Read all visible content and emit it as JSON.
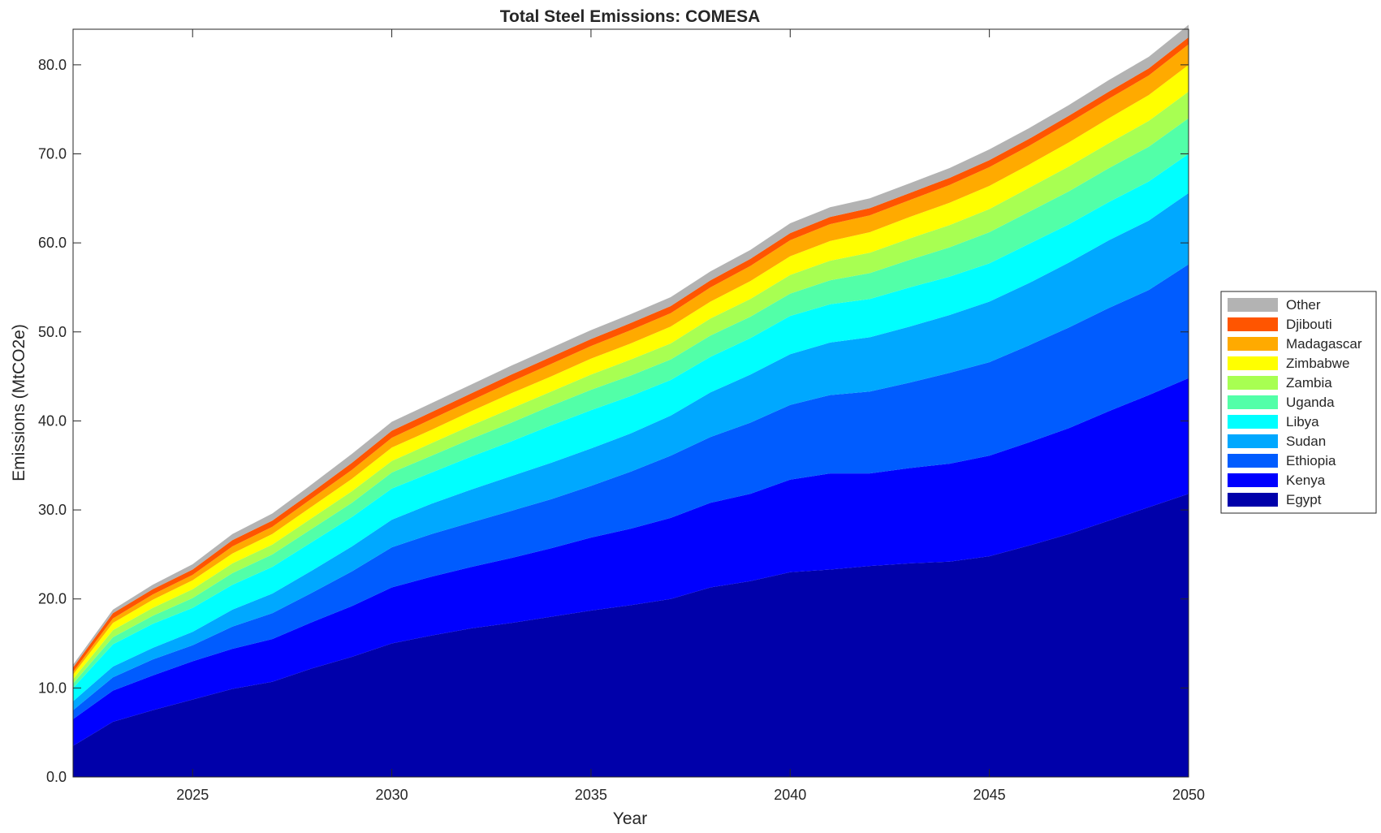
{
  "chart_data": {
    "type": "area",
    "stacked": true,
    "title": "Total Steel Emissions: COMESA",
    "xlabel": "Year",
    "ylabel": "Emissions (MtCO2e)",
    "xlim": [
      2022,
      2050
    ],
    "ylim": [
      0,
      84
    ],
    "xticks": [
      2025,
      2030,
      2035,
      2040,
      2045,
      2050
    ],
    "yticks": [
      0,
      10,
      20,
      30,
      40,
      50,
      60,
      70,
      80
    ],
    "ytick_labels": [
      "0.0",
      "10.0",
      "20.0",
      "30.0",
      "40.0",
      "50.0",
      "60.0",
      "70.0",
      "80.0"
    ],
    "xtick_labels": [
      "2025",
      "2030",
      "2035",
      "2040",
      "2045",
      "2050"
    ],
    "legend_position": "right",
    "x": [
      2022,
      2023,
      2024,
      2025,
      2026,
      2027,
      2028,
      2029,
      2030,
      2031,
      2032,
      2033,
      2034,
      2035,
      2036,
      2037,
      2038,
      2039,
      2040,
      2041,
      2042,
      2043,
      2044,
      2045,
      2046,
      2047,
      2048,
      2049,
      2050
    ],
    "series": [
      {
        "name": "Egypt",
        "color": "#0000aa",
        "values": [
          3.5,
          6.2,
          7.5,
          8.7,
          9.9,
          10.7,
          12.2,
          13.5,
          15.0,
          15.9,
          16.7,
          17.3,
          18.0,
          18.7,
          19.3,
          20.0,
          21.3,
          22.0,
          23.0,
          23.3,
          23.7,
          24.0,
          24.2,
          24.8,
          26.0,
          27.3,
          28.8,
          30.3,
          31.8
        ]
      },
      {
        "name": "Kenya",
        "color": "#0000ff",
        "values": [
          3.0,
          3.5,
          3.9,
          4.3,
          4.5,
          4.8,
          5.2,
          5.7,
          6.3,
          6.6,
          6.9,
          7.3,
          7.7,
          8.2,
          8.6,
          9.1,
          9.5,
          9.8,
          10.4,
          10.8,
          10.4,
          10.7,
          11.0,
          11.3,
          11.6,
          11.9,
          12.3,
          12.6,
          13.0
        ]
      },
      {
        "name": "Ethiopia",
        "color": "#005cff",
        "values": [
          1.0,
          1.5,
          1.8,
          1.8,
          2.5,
          2.9,
          3.3,
          3.9,
          4.5,
          4.8,
          5.0,
          5.3,
          5.5,
          5.8,
          6.4,
          7.0,
          7.4,
          8.0,
          8.4,
          8.8,
          9.2,
          9.6,
          10.2,
          10.5,
          10.9,
          11.3,
          11.6,
          11.8,
          12.8
        ]
      },
      {
        "name": "Sudan",
        "color": "#00a8ff",
        "values": [
          1.0,
          1.2,
          1.3,
          1.5,
          1.9,
          2.2,
          2.5,
          2.8,
          3.1,
          3.4,
          3.7,
          3.9,
          4.1,
          4.2,
          4.3,
          4.5,
          5.0,
          5.4,
          5.7,
          5.9,
          6.1,
          6.3,
          6.5,
          6.8,
          7.0,
          7.3,
          7.6,
          7.8,
          8.0
        ]
      },
      {
        "name": "Libya",
        "color": "#00ffff",
        "values": [
          1.5,
          2.5,
          2.7,
          2.7,
          2.8,
          3.0,
          3.2,
          3.3,
          3.5,
          3.5,
          3.7,
          3.9,
          4.2,
          4.3,
          4.2,
          4.0,
          4.0,
          4.1,
          4.3,
          4.3,
          4.3,
          4.4,
          4.3,
          4.3,
          4.4,
          4.3,
          4.3,
          4.4,
          4.4
        ]
      },
      {
        "name": "Uganda",
        "color": "#52ffa8",
        "values": [
          0.5,
          0.8,
          0.9,
          1.1,
          1.3,
          1.4,
          1.5,
          1.6,
          1.8,
          1.9,
          2.0,
          2.1,
          2.2,
          2.3,
          2.3,
          2.3,
          2.4,
          2.4,
          2.5,
          2.7,
          2.9,
          3.1,
          3.3,
          3.5,
          3.6,
          3.7,
          3.8,
          3.9,
          4.0
        ]
      },
      {
        "name": "Zambia",
        "color": "#a8ff52",
        "values": [
          0.5,
          0.8,
          0.9,
          1.0,
          1.1,
          1.1,
          1.2,
          1.3,
          1.3,
          1.4,
          1.5,
          1.6,
          1.6,
          1.7,
          1.8,
          1.8,
          1.9,
          2.0,
          2.1,
          2.2,
          2.3,
          2.4,
          2.5,
          2.6,
          2.7,
          2.8,
          2.8,
          2.9,
          3.0
        ]
      },
      {
        "name": "Zimbabwe",
        "color": "#ffff00",
        "values": [
          0.5,
          0.8,
          0.9,
          1.0,
          1.1,
          1.2,
          1.3,
          1.4,
          1.5,
          1.5,
          1.6,
          1.7,
          1.7,
          1.8,
          1.8,
          1.9,
          1.9,
          2.0,
          2.1,
          2.2,
          2.3,
          2.4,
          2.5,
          2.6,
          2.6,
          2.7,
          2.8,
          2.9,
          3.0
        ]
      },
      {
        "name": "Madagascar",
        "color": "#ffaa00",
        "values": [
          0.3,
          0.5,
          0.6,
          0.6,
          0.8,
          0.8,
          0.9,
          1.0,
          1.1,
          1.2,
          1.2,
          1.3,
          1.4,
          1.4,
          1.5,
          1.5,
          1.6,
          1.7,
          1.8,
          1.9,
          1.9,
          1.9,
          2.0,
          2.1,
          2.1,
          2.2,
          2.2,
          2.2,
          2.3
        ]
      },
      {
        "name": "Djibouti",
        "color": "#ff5500",
        "values": [
          0.5,
          0.6,
          0.6,
          0.6,
          0.7,
          0.7,
          0.7,
          0.8,
          0.8,
          0.8,
          0.8,
          0.8,
          0.8,
          0.8,
          0.8,
          0.8,
          0.8,
          0.8,
          0.8,
          0.8,
          0.8,
          0.8,
          0.8,
          0.8,
          0.8,
          0.8,
          0.8,
          0.8,
          0.8
        ]
      },
      {
        "name": "Other",
        "color": "#b3b3b3",
        "values": [
          0.3,
          0.4,
          0.5,
          0.6,
          0.7,
          0.8,
          0.9,
          1.0,
          1.0,
          1.0,
          1.0,
          1.0,
          1.0,
          1.0,
          1.0,
          1.0,
          1.0,
          1.0,
          1.1,
          1.1,
          1.1,
          1.1,
          1.1,
          1.2,
          1.2,
          1.2,
          1.3,
          1.3,
          1.4
        ]
      }
    ]
  }
}
